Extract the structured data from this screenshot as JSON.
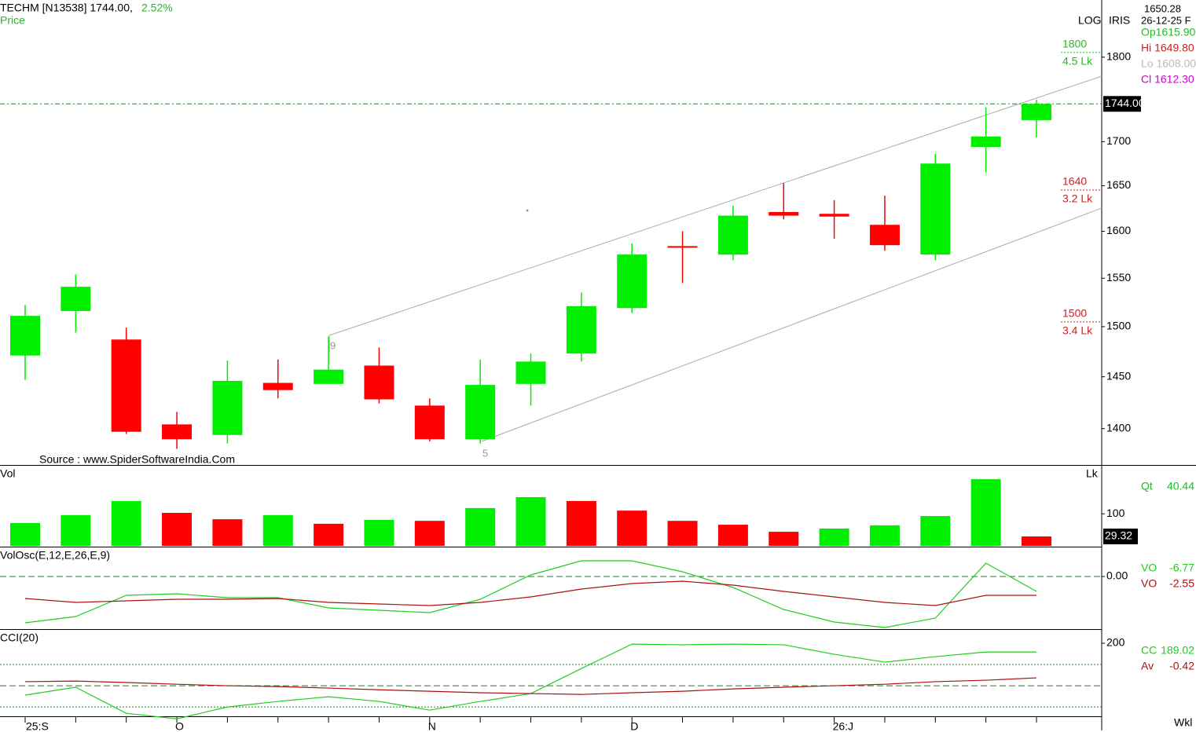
{
  "header": {
    "symbol": "TECHM [N13538] 1744.00,",
    "change": "2.52%",
    "series_label": "Price"
  },
  "info": {
    "scale": "LOG",
    "name": "IRIS",
    "value": "1650.28",
    "date": "26-12-25 F",
    "op": "Op1615.90",
    "hi": "Hi 1649.80",
    "lo": "Lo 1608.00",
    "cl": "Cl 1612.30"
  },
  "source": "Source : www.SpiderSoftwareIndia.Com",
  "period": "Wkl",
  "chart_data": [
    {
      "type": "candlestick",
      "categories": [
        "25:S",
        null,
        null,
        "O",
        null,
        null,
        null,
        null,
        "N",
        null,
        null,
        null,
        "D",
        null,
        null,
        null,
        "26:J",
        null,
        null,
        null,
        null
      ],
      "open": [
        1471,
        1516,
        1487,
        1404,
        1394,
        1444,
        1443,
        1461,
        1422,
        1390,
        1443,
        1473,
        1519,
        1584,
        1575,
        1621,
        1619,
        1607,
        1575,
        1694,
        1725
      ],
      "high": [
        1522,
        1554,
        1499,
        1416,
        1466,
        1467,
        1490,
        1479,
        1429,
        1467,
        1473,
        1535,
        1587,
        1600,
        1628,
        1653,
        1634,
        1639,
        1686,
        1740,
        1749
      ],
      "low": [
        1447,
        1494,
        1395,
        1381,
        1386,
        1429,
        1443,
        1424,
        1388,
        1386,
        1422,
        1465,
        1514,
        1545,
        1569,
        1613,
        1592,
        1579,
        1569,
        1665,
        1705
      ],
      "close": [
        1511,
        1541,
        1397,
        1390,
        1446,
        1437,
        1457,
        1428,
        1390,
        1442,
        1465,
        1521,
        1575,
        1583,
        1617,
        1617,
        1616,
        1585,
        1675,
        1706,
        1744
      ],
      "up_color": "#00ee00",
      "down_color": "#ff0000",
      "log": true,
      "ylim": [
        1366,
        1871
      ],
      "yticks": [
        1400,
        1450,
        1500,
        1550,
        1600,
        1650,
        1700,
        1800
      ],
      "last_price": {
        "value": 1744,
        "label": "1744.00"
      },
      "levels": [
        {
          "value": 1800,
          "volume": "4.5 Lk",
          "color": "#22bb22"
        },
        {
          "value": 1640,
          "volume": "3.2 Lk",
          "color": "#cc2222"
        },
        {
          "value": 1500,
          "volume": "3.4 Lk",
          "color": "#cc2222"
        }
      ],
      "chart_labels": [
        "9",
        "5"
      ]
    },
    {
      "type": "bar",
      "title": "Vol",
      "unit": "Lk",
      "values": [
        71,
        96,
        140,
        103,
        83,
        96,
        69,
        81,
        78,
        118,
        152,
        140,
        110,
        78,
        66,
        44,
        54,
        64,
        93,
        208,
        29.32
      ],
      "colors": [
        "#00ee00",
        "#00ee00",
        "#00ee00",
        "#ff0000",
        "#ff0000",
        "#00ee00",
        "#ff0000",
        "#00ee00",
        "#ff0000",
        "#00ee00",
        "#00ee00",
        "#ff0000",
        "#ff0000",
        "#ff0000",
        "#ff0000",
        "#ff0000",
        "#00ee00",
        "#00ee00",
        "#00ee00",
        "#00ee00",
        "#ff0000"
      ],
      "ylim": [
        0,
        250
      ],
      "yticks": [
        100
      ],
      "readout": {
        "label": "Qt",
        "value": "40.44"
      }
    },
    {
      "type": "line",
      "title": "VolOsc(E,12,E,26,E,9)",
      "series": [
        {
          "name": "VO",
          "color": "#22cc22",
          "values": [
            -29.5,
            -25.5,
            -12,
            -11,
            -13.5,
            -13.5,
            -20,
            -21.5,
            -23,
            -14.5,
            1,
            10,
            10,
            3,
            -7,
            -21,
            -29,
            -32.5,
            -26.5,
            8.5,
            -9.5
          ]
        },
        {
          "name": "VO",
          "color": "#aa1111",
          "values": [
            -14,
            -16.5,
            -15.5,
            -14.5,
            -14.5,
            -14,
            -16.5,
            -17.5,
            -18.5,
            -16.5,
            -13,
            -8,
            -4.5,
            -3,
            -5.5,
            -9.5,
            -13,
            -16.5,
            -18.5,
            -12,
            -12
          ]
        }
      ],
      "ylim": [
        -33,
        18.5
      ],
      "yticks": [
        {
          "value": 0,
          "label": "0.00"
        }
      ],
      "readouts": [
        "-6.77",
        "-2.55"
      ]
    },
    {
      "type": "line",
      "title": "CCI(20)",
      "series": [
        {
          "name": "CC",
          "color": "#22cc22",
          "values": [
            -44,
            -7,
            -130,
            -156,
            -100,
            -74,
            -52,
            -74,
            -115,
            -74,
            -37,
            81,
            196,
            193,
            196,
            193,
            148,
            111,
            137,
            159,
            159
          ]
        },
        {
          "name": "Av",
          "color": "#aa1111",
          "values": [
            19,
            22,
            15,
            7,
            0,
            -4,
            -11,
            -19,
            -26,
            -33,
            -37,
            -41,
            -33,
            -26,
            -15,
            -7,
            0,
            7,
            19,
            26,
            37
          ]
        }
      ],
      "ylim": [
        -144,
        263
      ],
      "yticks": [
        200
      ],
      "levels": [
        100,
        0,
        -100
      ],
      "readouts": [
        "189.02",
        "-0.42"
      ]
    }
  ]
}
